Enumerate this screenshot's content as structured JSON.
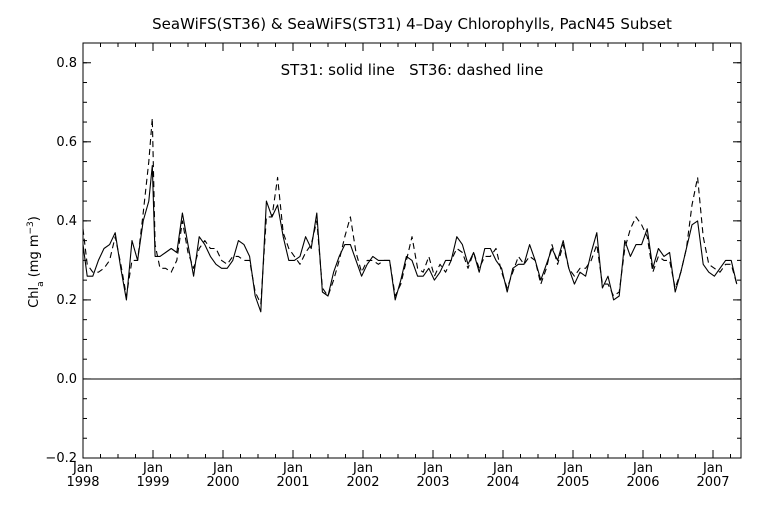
{
  "chart_data": {
    "type": "line",
    "title": "SeaWiFS(ST36) & SeaWiFS(ST31) 4–Day Chlorophylls, PacN45 Subset",
    "annotation": "ST31: solid line   ST36: dashed line",
    "ylabel": "Chl_a (mg m^-3)",
    "ylabel_parts": {
      "base": "Chl",
      "sub": "a",
      "unit_open": " (mg m",
      "sup": "−3",
      "unit_close": ")"
    },
    "xlabel": "",
    "xlim": [
      1998.0,
      2007.4
    ],
    "ylim": [
      -0.2,
      0.85
    ],
    "yticks": [
      -0.2,
      0.0,
      0.2,
      0.4,
      0.6,
      0.8
    ],
    "ytick_labels": [
      "−0.2",
      "0.0",
      "0.2",
      "0.4",
      "0.6",
      "0.8"
    ],
    "xticks": [
      {
        "x": 1998.0,
        "month": "Jan",
        "year": "1998"
      },
      {
        "x": 1999.0,
        "month": "Jan",
        "year": "1999"
      },
      {
        "x": 2000.0,
        "month": "Jan",
        "year": "2000"
      },
      {
        "x": 2001.0,
        "month": "Jan",
        "year": "2001"
      },
      {
        "x": 2002.0,
        "month": "Jan",
        "year": "2002"
      },
      {
        "x": 2003.0,
        "month": "Jan",
        "year": "2003"
      },
      {
        "x": 2004.0,
        "month": "Jan",
        "year": "2004"
      },
      {
        "x": 2005.0,
        "month": "Jan",
        "year": "2005"
      },
      {
        "x": 2006.0,
        "month": "Jan",
        "year": "2006"
      },
      {
        "x": 2007.0,
        "month": "Jan",
        "year": "2007"
      }
    ],
    "reference_line": 0.0,
    "series": [
      {
        "style": "solid",
        "points": [
          [
            1998.0,
            0.34
          ],
          [
            1998.06,
            0.26
          ],
          [
            1998.14,
            0.26
          ],
          [
            1998.22,
            0.3
          ],
          [
            1998.3,
            0.33
          ],
          [
            1998.38,
            0.34
          ],
          [
            1998.46,
            0.37
          ],
          [
            1998.54,
            0.28
          ],
          [
            1998.62,
            0.2
          ],
          [
            1998.7,
            0.35
          ],
          [
            1998.78,
            0.3
          ],
          [
            1998.86,
            0.4
          ],
          [
            1998.94,
            0.45
          ],
          [
            1998.99,
            0.54
          ],
          [
            1999.03,
            0.31
          ],
          [
            1999.1,
            0.31
          ],
          [
            1999.18,
            0.32
          ],
          [
            1999.26,
            0.33
          ],
          [
            1999.34,
            0.32
          ],
          [
            1999.42,
            0.42
          ],
          [
            1999.5,
            0.34
          ],
          [
            1999.58,
            0.26
          ],
          [
            1999.66,
            0.36
          ],
          [
            1999.74,
            0.34
          ],
          [
            1999.82,
            0.31
          ],
          [
            1999.9,
            0.29
          ],
          [
            1999.98,
            0.28
          ],
          [
            2000.06,
            0.28
          ],
          [
            2000.14,
            0.3
          ],
          [
            2000.22,
            0.35
          ],
          [
            2000.3,
            0.34
          ],
          [
            2000.38,
            0.31
          ],
          [
            2000.46,
            0.21
          ],
          [
            2000.54,
            0.17
          ],
          [
            2000.62,
            0.45
          ],
          [
            2000.7,
            0.41
          ],
          [
            2000.78,
            0.44
          ],
          [
            2000.86,
            0.36
          ],
          [
            2000.94,
            0.3
          ],
          [
            2001.02,
            0.3
          ],
          [
            2001.1,
            0.31
          ],
          [
            2001.18,
            0.36
          ],
          [
            2001.26,
            0.33
          ],
          [
            2001.34,
            0.42
          ],
          [
            2001.42,
            0.22
          ],
          [
            2001.5,
            0.21
          ],
          [
            2001.58,
            0.27
          ],
          [
            2001.66,
            0.31
          ],
          [
            2001.74,
            0.34
          ],
          [
            2001.82,
            0.34
          ],
          [
            2001.9,
            0.3
          ],
          [
            2001.98,
            0.26
          ],
          [
            2002.06,
            0.29
          ],
          [
            2002.14,
            0.31
          ],
          [
            2002.22,
            0.3
          ],
          [
            2002.3,
            0.3
          ],
          [
            2002.38,
            0.3
          ],
          [
            2002.46,
            0.2
          ],
          [
            2002.54,
            0.25
          ],
          [
            2002.62,
            0.31
          ],
          [
            2002.7,
            0.3
          ],
          [
            2002.78,
            0.26
          ],
          [
            2002.86,
            0.26
          ],
          [
            2002.94,
            0.28
          ],
          [
            2003.02,
            0.25
          ],
          [
            2003.1,
            0.27
          ],
          [
            2003.18,
            0.3
          ],
          [
            2003.26,
            0.3
          ],
          [
            2003.34,
            0.36
          ],
          [
            2003.42,
            0.34
          ],
          [
            2003.5,
            0.29
          ],
          [
            2003.58,
            0.32
          ],
          [
            2003.66,
            0.27
          ],
          [
            2003.74,
            0.33
          ],
          [
            2003.82,
            0.33
          ],
          [
            2003.9,
            0.3
          ],
          [
            2003.98,
            0.28
          ],
          [
            2004.06,
            0.22
          ],
          [
            2004.14,
            0.28
          ],
          [
            2004.22,
            0.29
          ],
          [
            2004.3,
            0.29
          ],
          [
            2004.38,
            0.34
          ],
          [
            2004.46,
            0.3
          ],
          [
            2004.54,
            0.25
          ],
          [
            2004.62,
            0.29
          ],
          [
            2004.7,
            0.33
          ],
          [
            2004.78,
            0.3
          ],
          [
            2004.86,
            0.35
          ],
          [
            2004.94,
            0.28
          ],
          [
            2005.02,
            0.24
          ],
          [
            2005.1,
            0.27
          ],
          [
            2005.18,
            0.26
          ],
          [
            2005.26,
            0.32
          ],
          [
            2005.34,
            0.37
          ],
          [
            2005.42,
            0.23
          ],
          [
            2005.5,
            0.26
          ],
          [
            2005.58,
            0.2
          ],
          [
            2005.66,
            0.21
          ],
          [
            2005.74,
            0.35
          ],
          [
            2005.82,
            0.31
          ],
          [
            2005.9,
            0.34
          ],
          [
            2005.98,
            0.34
          ],
          [
            2006.06,
            0.38
          ],
          [
            2006.14,
            0.28
          ],
          [
            2006.22,
            0.33
          ],
          [
            2006.3,
            0.31
          ],
          [
            2006.38,
            0.32
          ],
          [
            2006.46,
            0.22
          ],
          [
            2006.54,
            0.27
          ],
          [
            2006.62,
            0.33
          ],
          [
            2006.7,
            0.39
          ],
          [
            2006.78,
            0.4
          ],
          [
            2006.86,
            0.29
          ],
          [
            2006.94,
            0.27
          ],
          [
            2007.02,
            0.26
          ],
          [
            2007.1,
            0.28
          ],
          [
            2007.18,
            0.3
          ],
          [
            2007.26,
            0.3
          ],
          [
            2007.34,
            0.24
          ]
        ]
      },
      {
        "style": "dashed",
        "points": [
          [
            1998.0,
            0.38
          ],
          [
            1998.06,
            0.29
          ],
          [
            1998.14,
            0.27
          ],
          [
            1998.22,
            0.27
          ],
          [
            1998.3,
            0.28
          ],
          [
            1998.38,
            0.3
          ],
          [
            1998.46,
            0.36
          ],
          [
            1998.54,
            0.29
          ],
          [
            1998.62,
            0.21
          ],
          [
            1998.7,
            0.3
          ],
          [
            1998.78,
            0.3
          ],
          [
            1998.86,
            0.42
          ],
          [
            1998.94,
            0.55
          ],
          [
            1998.99,
            0.66
          ],
          [
            1999.03,
            0.34
          ],
          [
            1999.1,
            0.28
          ],
          [
            1999.18,
            0.28
          ],
          [
            1999.26,
            0.27
          ],
          [
            1999.34,
            0.3
          ],
          [
            1999.42,
            0.4
          ],
          [
            1999.5,
            0.32
          ],
          [
            1999.58,
            0.28
          ],
          [
            1999.66,
            0.33
          ],
          [
            1999.74,
            0.35
          ],
          [
            1999.82,
            0.33
          ],
          [
            1999.9,
            0.33
          ],
          [
            1999.98,
            0.3
          ],
          [
            2000.06,
            0.29
          ],
          [
            2000.14,
            0.31
          ],
          [
            2000.22,
            0.31
          ],
          [
            2000.3,
            0.3
          ],
          [
            2000.38,
            0.3
          ],
          [
            2000.46,
            0.22
          ],
          [
            2000.54,
            0.19
          ],
          [
            2000.62,
            0.41
          ],
          [
            2000.7,
            0.41
          ],
          [
            2000.78,
            0.51
          ],
          [
            2000.86,
            0.37
          ],
          [
            2000.94,
            0.33
          ],
          [
            2001.02,
            0.31
          ],
          [
            2001.1,
            0.29
          ],
          [
            2001.18,
            0.32
          ],
          [
            2001.26,
            0.34
          ],
          [
            2001.34,
            0.4
          ],
          [
            2001.42,
            0.23
          ],
          [
            2001.5,
            0.21
          ],
          [
            2001.58,
            0.25
          ],
          [
            2001.66,
            0.3
          ],
          [
            2001.74,
            0.36
          ],
          [
            2001.82,
            0.41
          ],
          [
            2001.9,
            0.32
          ],
          [
            2001.98,
            0.27
          ],
          [
            2002.06,
            0.3
          ],
          [
            2002.14,
            0.3
          ],
          [
            2002.22,
            0.29
          ],
          [
            2002.3,
            0.3
          ],
          [
            2002.38,
            0.3
          ],
          [
            2002.46,
            0.21
          ],
          [
            2002.54,
            0.24
          ],
          [
            2002.62,
            0.3
          ],
          [
            2002.7,
            0.36
          ],
          [
            2002.78,
            0.28
          ],
          [
            2002.86,
            0.27
          ],
          [
            2002.94,
            0.31
          ],
          [
            2003.02,
            0.26
          ],
          [
            2003.1,
            0.29
          ],
          [
            2003.18,
            0.27
          ],
          [
            2003.26,
            0.3
          ],
          [
            2003.34,
            0.33
          ],
          [
            2003.42,
            0.32
          ],
          [
            2003.5,
            0.28
          ],
          [
            2003.58,
            0.32
          ],
          [
            2003.66,
            0.28
          ],
          [
            2003.74,
            0.31
          ],
          [
            2003.82,
            0.31
          ],
          [
            2003.9,
            0.33
          ],
          [
            2003.98,
            0.27
          ],
          [
            2004.06,
            0.23
          ],
          [
            2004.14,
            0.27
          ],
          [
            2004.22,
            0.31
          ],
          [
            2004.3,
            0.29
          ],
          [
            2004.38,
            0.31
          ],
          [
            2004.46,
            0.3
          ],
          [
            2004.54,
            0.24
          ],
          [
            2004.62,
            0.28
          ],
          [
            2004.7,
            0.34
          ],
          [
            2004.78,
            0.29
          ],
          [
            2004.86,
            0.34
          ],
          [
            2004.94,
            0.28
          ],
          [
            2005.02,
            0.26
          ],
          [
            2005.1,
            0.28
          ],
          [
            2005.18,
            0.28
          ],
          [
            2005.26,
            0.3
          ],
          [
            2005.34,
            0.34
          ],
          [
            2005.42,
            0.24
          ],
          [
            2005.5,
            0.24
          ],
          [
            2005.58,
            0.21
          ],
          [
            2005.66,
            0.22
          ],
          [
            2005.74,
            0.33
          ],
          [
            2005.82,
            0.38
          ],
          [
            2005.9,
            0.41
          ],
          [
            2005.98,
            0.39
          ],
          [
            2006.06,
            0.36
          ],
          [
            2006.14,
            0.27
          ],
          [
            2006.22,
            0.31
          ],
          [
            2006.3,
            0.3
          ],
          [
            2006.38,
            0.3
          ],
          [
            2006.46,
            0.23
          ],
          [
            2006.54,
            0.27
          ],
          [
            2006.62,
            0.33
          ],
          [
            2006.7,
            0.44
          ],
          [
            2006.78,
            0.51
          ],
          [
            2006.86,
            0.36
          ],
          [
            2006.94,
            0.29
          ],
          [
            2007.02,
            0.28
          ],
          [
            2007.1,
            0.27
          ],
          [
            2007.18,
            0.29
          ],
          [
            2007.26,
            0.29
          ],
          [
            2007.34,
            0.24
          ]
        ]
      }
    ]
  }
}
